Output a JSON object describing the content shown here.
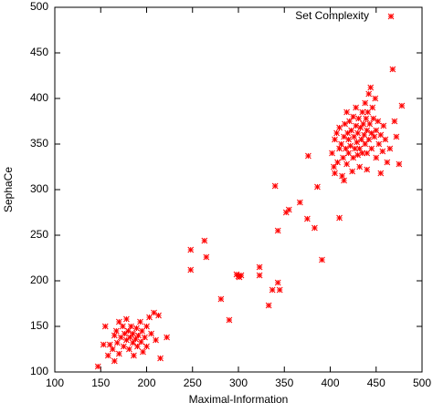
{
  "chart_data": {
    "type": "scatter",
    "xlabel": "Maximal-Information",
    "ylabel": "SephaCe",
    "xlim": [
      100,
      500
    ],
    "ylim": [
      100,
      500
    ],
    "xticks": [
      100,
      150,
      200,
      250,
      300,
      350,
      400,
      450,
      500
    ],
    "yticks": [
      100,
      150,
      200,
      250,
      300,
      350,
      400,
      450,
      500
    ],
    "legend": "upper right",
    "series": [
      {
        "name": "Set Complexity",
        "color": "#ff0000",
        "x": [
          147,
          155,
          158,
          160,
          163,
          165,
          167,
          168,
          170,
          170,
          172,
          174,
          175,
          176,
          178,
          178,
          180,
          181,
          182,
          183,
          185,
          185,
          186,
          188,
          189,
          190,
          191,
          193,
          194,
          195,
          196,
          198,
          200,
          200,
          203,
          205,
          208,
          210,
          213,
          215,
          222,
          153,
          165,
          248,
          248,
          263,
          265,
          281,
          290,
          298,
          300,
          303,
          301,
          323,
          323,
          333,
          337,
          340,
          343,
          345,
          343,
          352,
          355,
          367,
          375,
          383,
          386,
          391,
          410,
          376,
          402,
          404,
          405,
          407,
          408,
          410,
          410,
          412,
          413,
          414,
          415,
          416,
          417,
          418,
          418,
          419,
          420,
          420,
          421,
          422,
          423,
          424,
          425,
          425,
          426,
          427,
          428,
          428,
          429,
          430,
          430,
          431,
          432,
          432,
          433,
          434,
          435,
          435,
          436,
          437,
          438,
          438,
          439,
          440,
          440,
          441,
          442,
          442,
          443,
          444,
          445,
          445,
          446,
          447,
          448,
          449,
          450,
          450,
          452,
          453,
          455,
          457,
          458,
          460,
          462,
          465,
          468,
          470,
          472,
          475,
          478,
          405,
          415,
          455,
          440
        ],
        "values": [
          106,
          150,
          118,
          130,
          125,
          140,
          145,
          132,
          155,
          120,
          138,
          150,
          128,
          142,
          135,
          158,
          145,
          125,
          138,
          150,
          132,
          142,
          118,
          136,
          148,
          128,
          140,
          155,
          133,
          145,
          122,
          138,
          150,
          128,
          160,
          142,
          165,
          135,
          162,
          115,
          138,
          130,
          112,
          234,
          212,
          244,
          226,
          180,
          157,
          207,
          205,
          206,
          204,
          215,
          206,
          173,
          190,
          304,
          198,
          190,
          255,
          275,
          278,
          286,
          268,
          258,
          303,
          223,
          269,
          337,
          340,
          325,
          355,
          362,
          330,
          345,
          368,
          350,
          315,
          335,
          358,
          372,
          345,
          328,
          385,
          362,
          340,
          355,
          375,
          348,
          365,
          320,
          335,
          380,
          358,
          345,
          370,
          390,
          352,
          338,
          362,
          378,
          345,
          325,
          368,
          355,
          385,
          340,
          372,
          360,
          350,
          395,
          378,
          365,
          340,
          385,
          355,
          405,
          372,
          412,
          362,
          345,
          390,
          378,
          358,
          400,
          365,
          335,
          375,
          350,
          360,
          342,
          370,
          355,
          330,
          345,
          432,
          375,
          358,
          328,
          392,
          318,
          310,
          318,
          322
        ]
      }
    ]
  }
}
